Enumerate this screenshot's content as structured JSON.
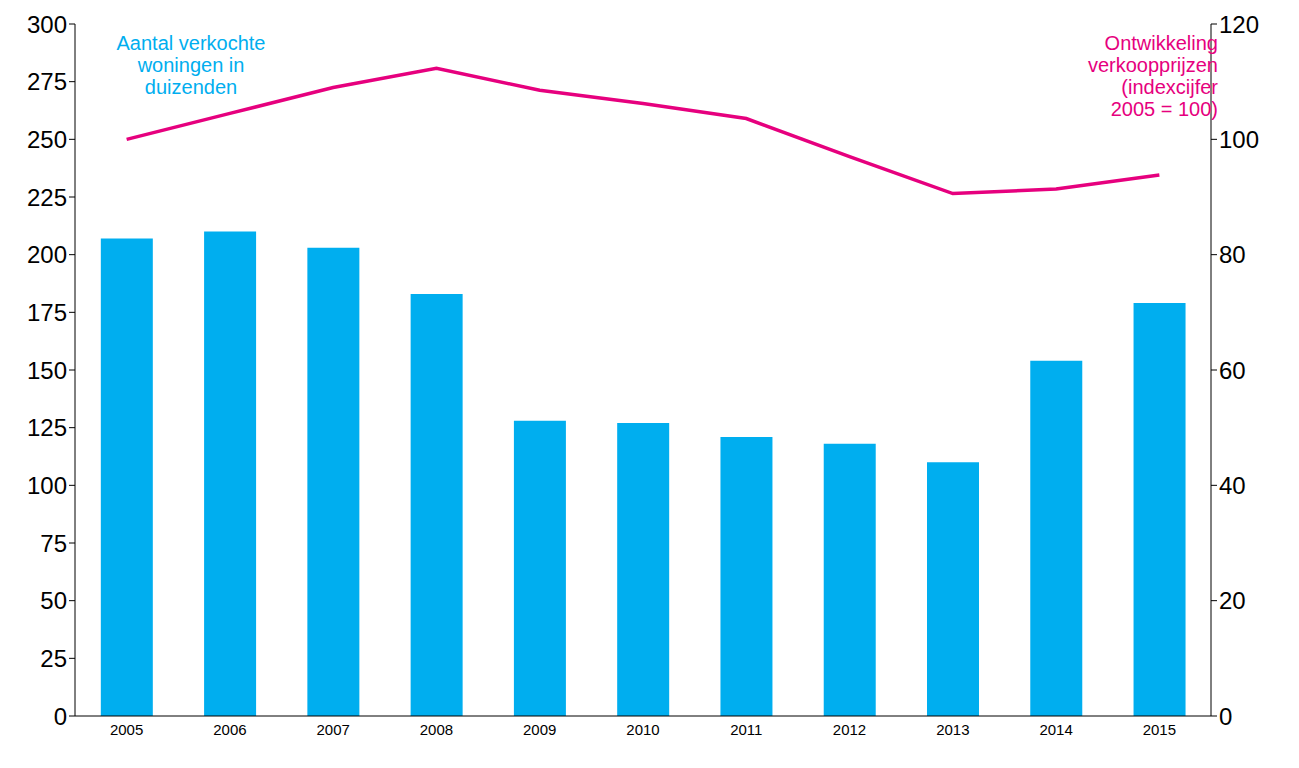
{
  "chart_data": {
    "type": "bar",
    "categories": [
      "2005",
      "2006",
      "2007",
      "2008",
      "2009",
      "2010",
      "2011",
      "2012",
      "2013",
      "2014",
      "2015"
    ],
    "series": [
      {
        "name": "Aantal verkochte woningen in duizenden",
        "type": "bar",
        "color": "#00aeef",
        "values": [
          207,
          210,
          203,
          183,
          128,
          127,
          121,
          118,
          110,
          154,
          179
        ]
      },
      {
        "name": "Ontwikkeling verkoopprijzen (indexcijfer 2005 = 100)",
        "type": "line",
        "axis": "y2",
        "color": "#e6007e",
        "values": [
          100,
          104.5,
          109,
          112.3,
          108.5,
          106.2,
          103.6,
          97,
          90.6,
          91.4,
          93.8
        ]
      }
    ],
    "ylim": [
      0,
      300
    ],
    "yticks": [
      0,
      25,
      50,
      75,
      100,
      125,
      150,
      175,
      200,
      225,
      250,
      275,
      300
    ],
    "y2lim": [
      0,
      120
    ],
    "y2ticks": [
      0,
      20,
      40,
      60,
      80,
      100,
      120
    ],
    "grid": false
  }
}
